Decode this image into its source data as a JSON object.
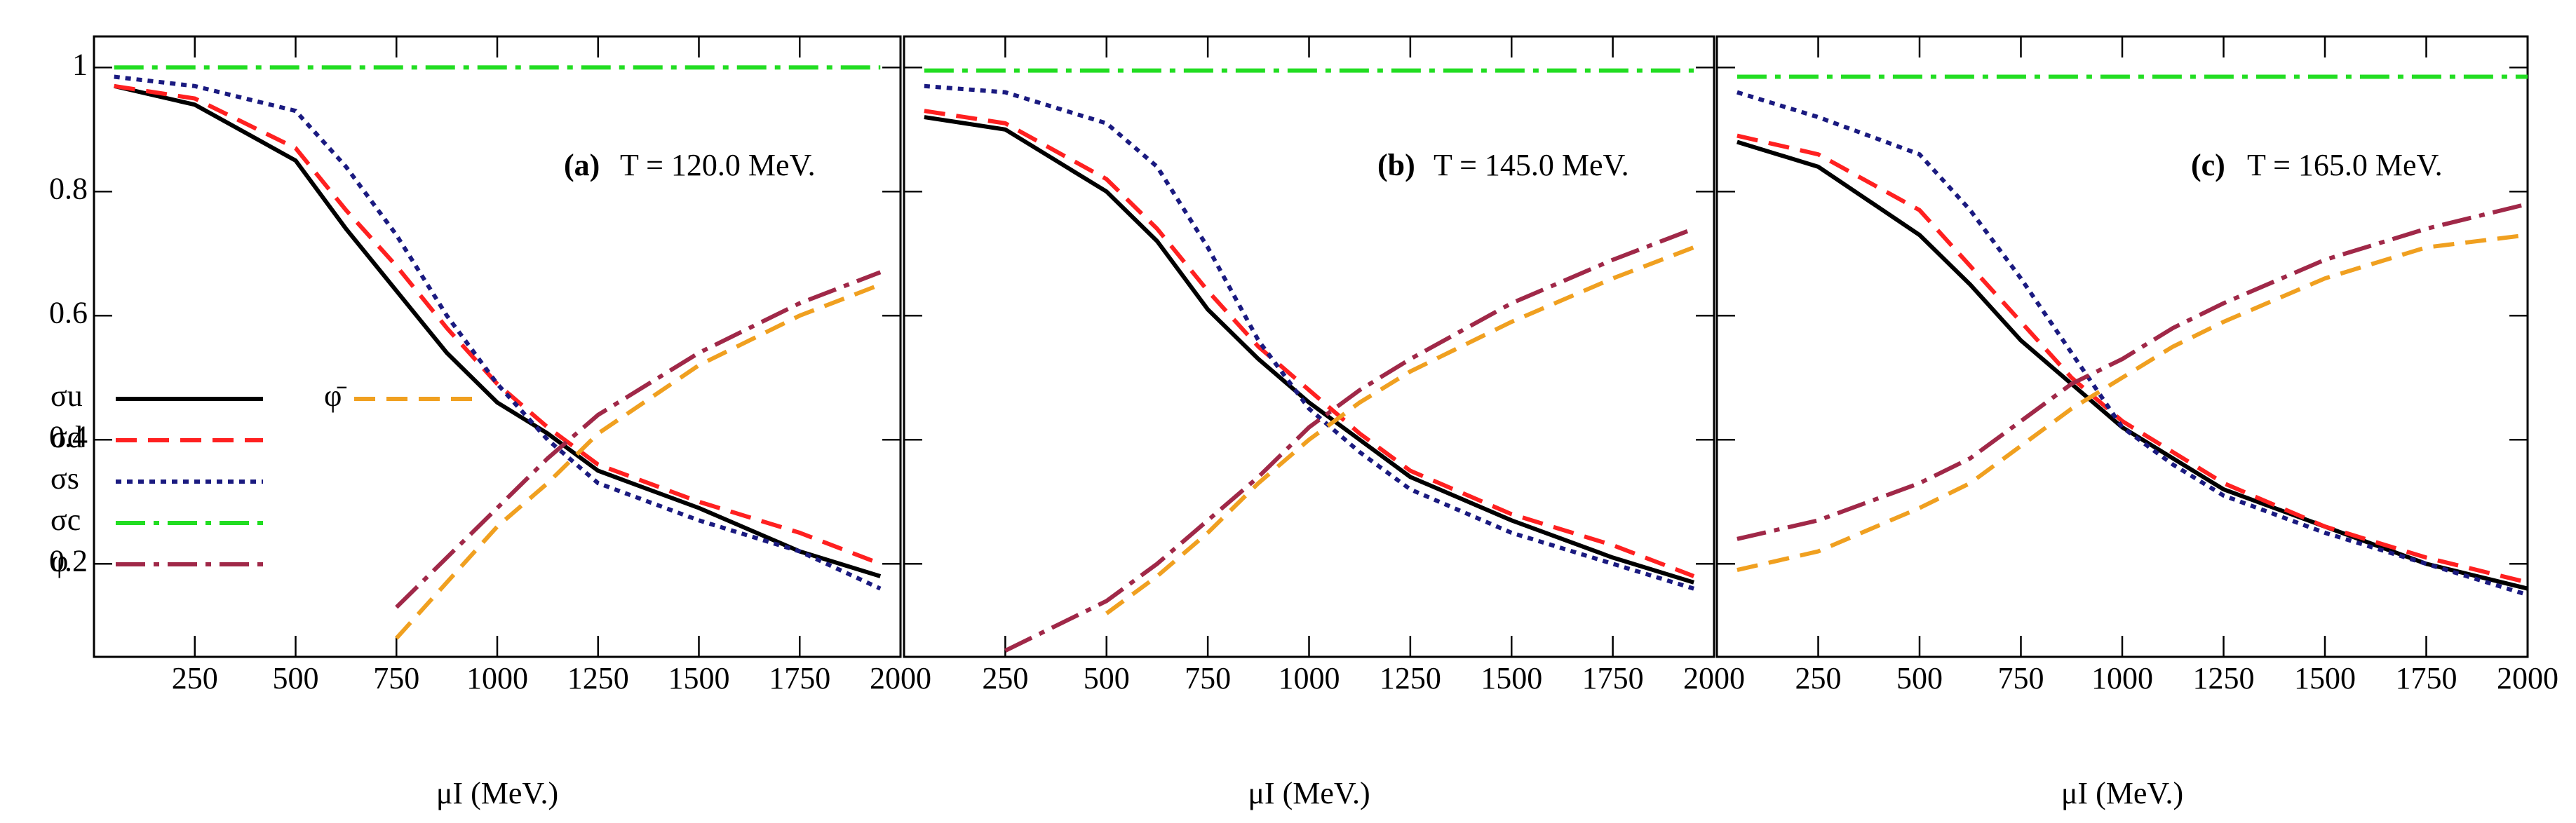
{
  "chart_data": [
    {
      "type": "line",
      "panel_label": "(a)",
      "annotation": "T = 120.0 MeV.",
      "x_label": "μI (MeV.)",
      "x": [
        50,
        250,
        500,
        625,
        750,
        875,
        1000,
        1125,
        1250,
        1500,
        1750,
        1950
      ],
      "xlim": [
        0,
        2000
      ],
      "xticks": [
        250,
        500,
        750,
        1000,
        1250,
        1500,
        1750,
        2000
      ],
      "ylim": [
        0.05,
        1.05
      ],
      "yticks": [
        0.2,
        0.4,
        0.6,
        0.8,
        1
      ],
      "series": [
        {
          "name": "σu",
          "color": "#000000",
          "dash": "solid",
          "values": [
            0.97,
            0.94,
            0.85,
            0.74,
            0.64,
            0.54,
            0.46,
            0.41,
            0.35,
            0.29,
            0.22,
            0.18
          ]
        },
        {
          "name": "σd",
          "color": "#ff2020",
          "dash": "dashed",
          "values": [
            0.97,
            0.95,
            0.87,
            0.77,
            0.68,
            0.58,
            0.49,
            0.42,
            0.36,
            0.3,
            0.25,
            0.2
          ]
        },
        {
          "name": "σs",
          "color": "#1a1a80",
          "dash": "dotted",
          "values": [
            0.985,
            0.97,
            0.93,
            0.84,
            0.73,
            0.6,
            0.49,
            0.4,
            0.33,
            0.27,
            0.22,
            0.16
          ]
        },
        {
          "name": "σc",
          "color": "#22dd22",
          "dash": "dashdot",
          "values": [
            1,
            1,
            1,
            1,
            1,
            1,
            1,
            1,
            1,
            1,
            1,
            1
          ]
        },
        {
          "name": "φ",
          "color": "#a02848",
          "dash": "dashdot",
          "values": [
            null,
            null,
            null,
            null,
            0.13,
            0.21,
            0.29,
            0.37,
            0.44,
            0.54,
            0.62,
            0.67
          ]
        },
        {
          "name": "φ̄",
          "color": "#f0a020",
          "dash": "dashed",
          "values": [
            null,
            null,
            null,
            null,
            0.08,
            0.17,
            0.26,
            0.33,
            0.41,
            0.52,
            0.6,
            0.65
          ]
        }
      ]
    },
    {
      "type": "line",
      "panel_label": "(b)",
      "annotation": "T = 145.0 MeV.",
      "x_label": "μI (MeV.)",
      "x": [
        50,
        250,
        500,
        625,
        750,
        875,
        1000,
        1125,
        1250,
        1500,
        1750,
        1950
      ],
      "xlim": [
        0,
        2000
      ],
      "xticks": [
        250,
        500,
        750,
        1000,
        1250,
        1500,
        1750,
        2000
      ],
      "ylim": [
        0.05,
        1.05
      ],
      "yticks": [
        0.2,
        0.4,
        0.6,
        0.8,
        1
      ],
      "series": [
        {
          "color": "#000000",
          "dash": "solid",
          "values": [
            0.92,
            0.9,
            0.8,
            0.72,
            0.61,
            0.53,
            0.46,
            0.4,
            0.34,
            0.27,
            0.21,
            0.17
          ]
        },
        {
          "color": "#ff2020",
          "dash": "dashed",
          "values": [
            0.93,
            0.91,
            0.82,
            0.74,
            0.64,
            0.55,
            0.48,
            0.41,
            0.35,
            0.28,
            0.23,
            0.18
          ]
        },
        {
          "color": "#1a1a80",
          "dash": "dotted",
          "values": [
            0.97,
            0.96,
            0.91,
            0.84,
            0.71,
            0.56,
            0.45,
            0.38,
            0.32,
            0.25,
            0.2,
            0.16
          ]
        },
        {
          "color": "#22dd22",
          "dash": "dashdot",
          "values": [
            0.995,
            0.995,
            0.995,
            0.995,
            0.995,
            0.995,
            0.995,
            0.995,
            0.995,
            0.995,
            0.995,
            0.995
          ]
        },
        {
          "color": "#a02848",
          "dash": "dashdot",
          "values": [
            null,
            0.06,
            0.14,
            0.2,
            0.27,
            0.34,
            0.42,
            0.48,
            0.53,
            0.62,
            0.69,
            0.74
          ]
        },
        {
          "color": "#f0a020",
          "dash": "dashed",
          "values": [
            null,
            null,
            0.12,
            0.18,
            0.25,
            0.33,
            0.4,
            0.46,
            0.51,
            0.59,
            0.66,
            0.71
          ]
        }
      ]
    },
    {
      "type": "line",
      "panel_label": "(c)",
      "annotation": "T = 165.0 MeV.",
      "x_label": "μI (MeV.)",
      "x": [
        50,
        250,
        500,
        625,
        750,
        875,
        1000,
        1125,
        1250,
        1500,
        1750,
        2000
      ],
      "xlim": [
        0,
        2000
      ],
      "xticks": [
        250,
        500,
        750,
        1000,
        1250,
        1500,
        1750,
        2000
      ],
      "ylim": [
        0.05,
        1.05
      ],
      "yticks": [
        0.2,
        0.4,
        0.6,
        0.8,
        1
      ],
      "series": [
        {
          "color": "#000000",
          "dash": "solid",
          "values": [
            0.88,
            0.84,
            0.73,
            0.65,
            0.56,
            0.49,
            0.42,
            0.37,
            0.32,
            0.26,
            0.2,
            0.16
          ]
        },
        {
          "color": "#ff2020",
          "dash": "dashed",
          "values": [
            0.89,
            0.86,
            0.77,
            0.68,
            0.59,
            0.5,
            0.43,
            0.38,
            0.33,
            0.26,
            0.21,
            0.17
          ]
        },
        {
          "color": "#1a1a80",
          "dash": "dotted",
          "values": [
            0.96,
            0.92,
            0.86,
            0.77,
            0.66,
            0.54,
            0.42,
            0.36,
            0.31,
            0.25,
            0.2,
            0.15
          ]
        },
        {
          "color": "#22dd22",
          "dash": "dashdot",
          "values": [
            0.985,
            0.985,
            0.985,
            0.985,
            0.985,
            0.985,
            0.985,
            0.985,
            0.985,
            0.985,
            0.985,
            0.985
          ]
        },
        {
          "color": "#a02848",
          "dash": "dashdot",
          "values": [
            0.24,
            0.27,
            0.33,
            0.37,
            0.43,
            0.49,
            0.53,
            0.58,
            0.62,
            0.69,
            0.74,
            0.78
          ]
        },
        {
          "color": "#f0a020",
          "dash": "dashed",
          "values": [
            0.19,
            0.22,
            0.29,
            0.33,
            0.39,
            0.45,
            0.5,
            0.55,
            0.59,
            0.66,
            0.71,
            0.73
          ]
        }
      ]
    }
  ]
}
